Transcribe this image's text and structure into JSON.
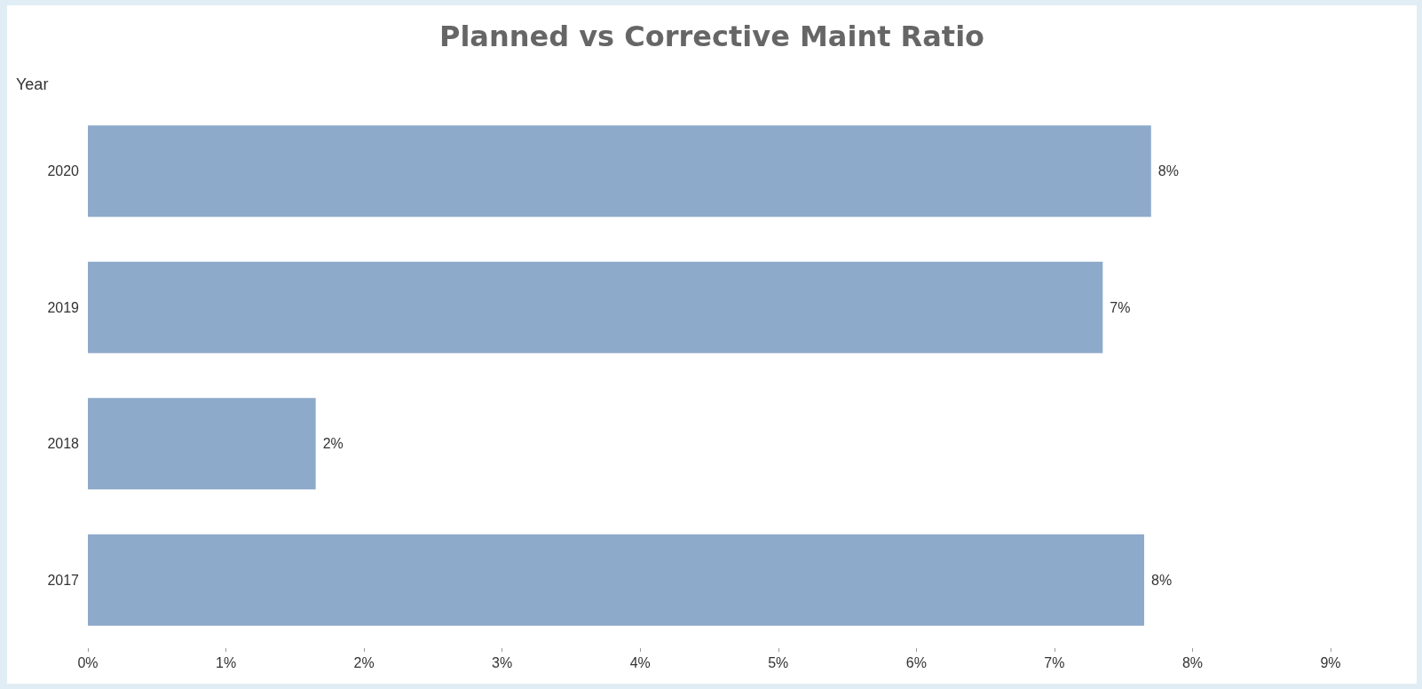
{
  "chart_data": {
    "type": "bar",
    "orientation": "horizontal",
    "title": "Planned vs Corrective Maint Ratio",
    "ylabel": "Year",
    "categories": [
      "2020",
      "2019",
      "2018",
      "2017"
    ],
    "values": [
      7.7,
      7.35,
      1.65,
      7.65
    ],
    "value_labels": [
      "8%",
      "7%",
      "2%",
      "8%"
    ],
    "color": "#8eaaca",
    "xlim": [
      0,
      9
    ],
    "xticks": [
      {
        "value": 0,
        "label": "0%"
      },
      {
        "value": 1,
        "label": "1%"
      },
      {
        "value": 2,
        "label": "2%"
      },
      {
        "value": 3,
        "label": "3%"
      },
      {
        "value": 4,
        "label": "4%"
      },
      {
        "value": 5,
        "label": "5%"
      },
      {
        "value": 6,
        "label": "6%"
      },
      {
        "value": 7,
        "label": "7%"
      },
      {
        "value": 8,
        "label": "8%"
      },
      {
        "value": 9,
        "label": "9%"
      }
    ],
    "grid": false
  }
}
